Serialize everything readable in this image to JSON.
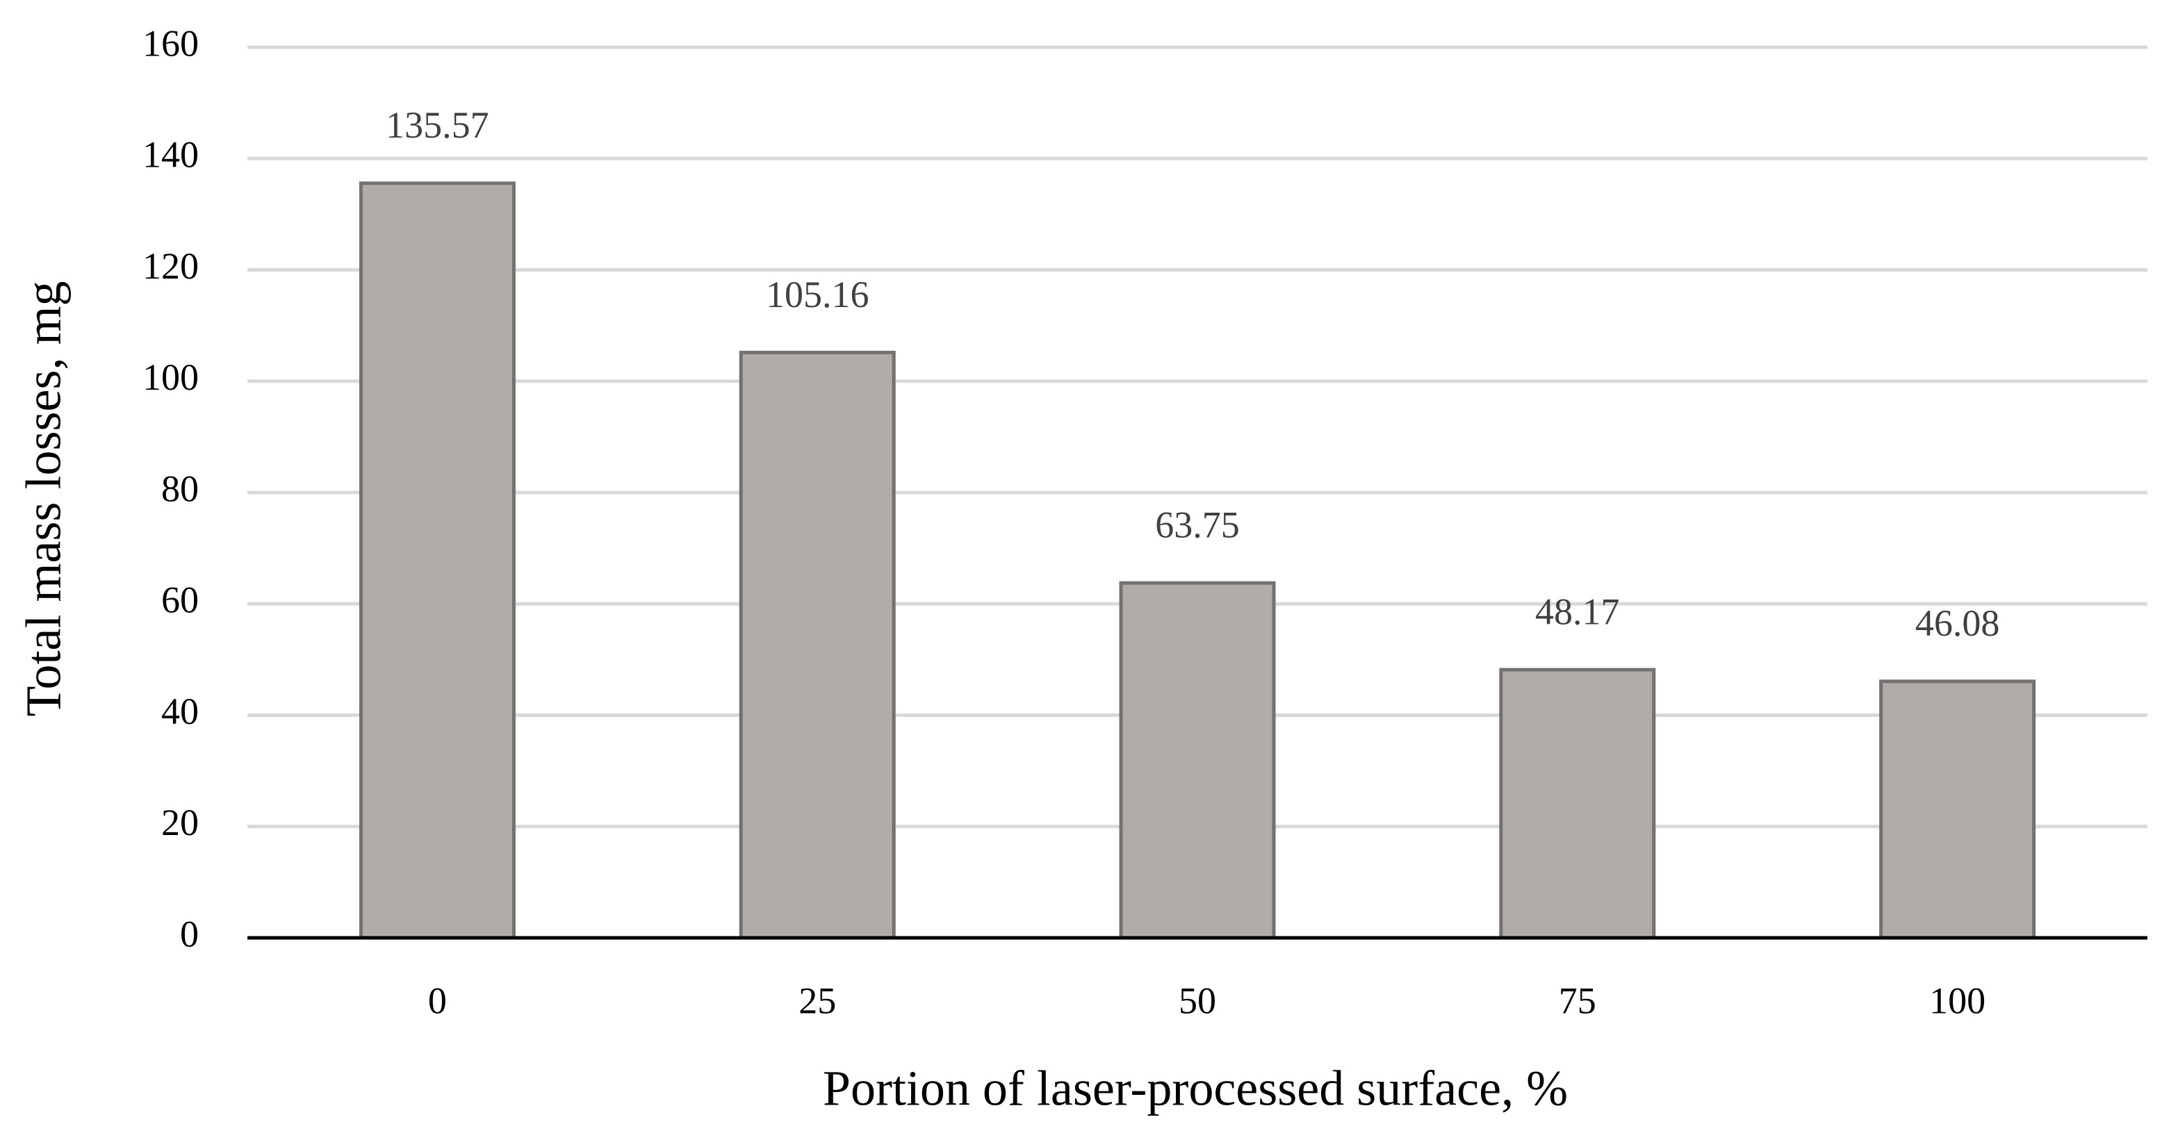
{
  "chart_data": {
    "type": "bar",
    "x_label": "Portion of laser-processed surface, %",
    "y_label": "Total mass losses, mg",
    "categories": [
      "0",
      "25",
      "50",
      "75",
      "100"
    ],
    "values": [
      135.57,
      105.16,
      63.75,
      48.17,
      46.08
    ],
    "color": "#b0acaa",
    "edge_color": "#767171",
    "ylim": [
      0,
      160
    ],
    "yticks": [
      0,
      20,
      40,
      60,
      80,
      100,
      120,
      140,
      160
    ],
    "grid": true
  }
}
